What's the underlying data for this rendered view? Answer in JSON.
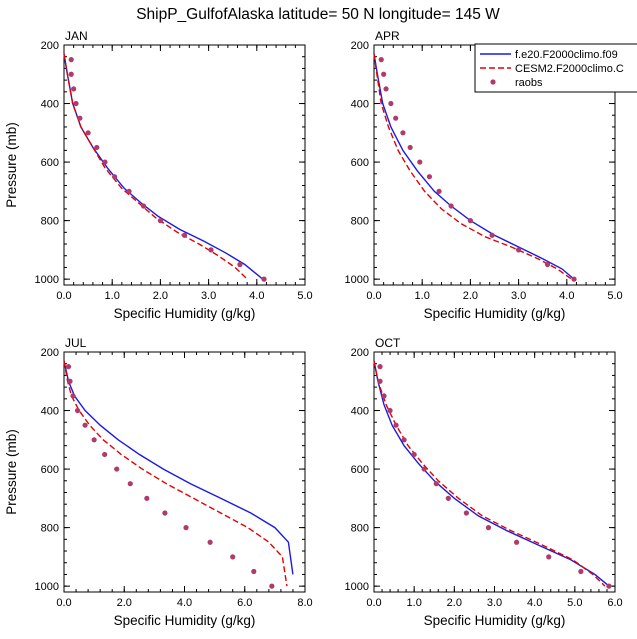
{
  "figure": {
    "title": "ShipP_GulfofAlaska  latitude= 50 N longitude= 145 W"
  },
  "colors": {
    "model1": "#1a1ae6",
    "model2": "#e60000",
    "obs": "#b03a6a"
  },
  "legend": {
    "placement": "top-right of APR panel",
    "entries": [
      {
        "label": "f.e20.F2000climo.f09",
        "style": "solid",
        "color": "#1a1ae6"
      },
      {
        "label": "CESM2.F2000climo.C",
        "style": "dashed",
        "color": "#e60000"
      },
      {
        "label": "raobs",
        "style": "marker",
        "color": "#b03a6a"
      }
    ]
  },
  "chart_data": [
    {
      "type": "line",
      "panel": "JAN",
      "xlabel": "Specific Humidity (g/kg)",
      "ylabel": "Pressure (mb)",
      "xlim": [
        0,
        5
      ],
      "ylim": [
        1020,
        200
      ],
      "xticks": [
        "0.0",
        "1.0",
        "2.0",
        "3.0",
        "4.0",
        "5.0"
      ],
      "yticks": [
        "200",
        "400",
        "600",
        "800",
        "1000"
      ],
      "series": [
        {
          "name": "f.e20.F2000climo.f09",
          "style": "solid",
          "x": [
            0.0,
            0.07,
            0.18,
            0.35,
            0.6,
            0.9,
            1.25,
            1.6,
            1.95,
            2.4,
            2.9,
            3.35,
            3.75,
            4.05,
            4.12
          ],
          "y": [
            230,
            300,
            400,
            480,
            550,
            620,
            690,
            740,
            785,
            830,
            870,
            910,
            950,
            990,
            1000
          ]
        },
        {
          "name": "CESM2.F2000climo.C",
          "style": "dashed",
          "x": [
            0.0,
            0.07,
            0.18,
            0.35,
            0.6,
            0.85,
            1.2,
            1.55,
            1.9,
            2.35,
            2.8,
            3.2,
            3.55,
            3.8
          ],
          "y": [
            230,
            300,
            400,
            480,
            550,
            620,
            690,
            740,
            790,
            840,
            880,
            920,
            960,
            1000
          ]
        },
        {
          "name": "raobs",
          "style": "marker",
          "x": [
            0.15,
            0.15,
            0.2,
            0.25,
            0.33,
            0.5,
            0.68,
            0.85,
            1.05,
            1.35,
            1.65,
            2.0,
            2.5,
            3.05,
            3.65,
            4.15
          ],
          "y": [
            250,
            300,
            350,
            400,
            450,
            500,
            550,
            600,
            650,
            700,
            750,
            800,
            850,
            900,
            950,
            1000
          ]
        }
      ]
    },
    {
      "type": "line",
      "panel": "APR",
      "xlabel": "Specific Humidity (g/kg)",
      "ylabel": "",
      "xlim": [
        0,
        5
      ],
      "ylim": [
        1020,
        200
      ],
      "xticks": [
        "0.0",
        "1.0",
        "2.0",
        "3.0",
        "4.0",
        "5.0"
      ],
      "yticks": [
        "200",
        "400",
        "600",
        "800",
        "1000"
      ],
      "series": [
        {
          "name": "f.e20.F2000climo.f09",
          "style": "solid",
          "x": [
            0.0,
            0.07,
            0.18,
            0.35,
            0.6,
            0.9,
            1.25,
            1.6,
            2.0,
            2.5,
            3.0,
            3.5,
            3.9,
            4.15
          ],
          "y": [
            230,
            300,
            400,
            480,
            560,
            630,
            700,
            750,
            800,
            850,
            890,
            930,
            965,
            1000
          ]
        },
        {
          "name": "CESM2.F2000climo.C",
          "style": "dashed",
          "x": [
            0.0,
            0.06,
            0.15,
            0.3,
            0.5,
            0.75,
            1.05,
            1.4,
            1.8,
            2.3,
            2.85,
            3.4,
            3.8,
            4.1
          ],
          "y": [
            230,
            300,
            400,
            480,
            560,
            630,
            700,
            760,
            810,
            855,
            890,
            930,
            965,
            1000
          ]
        },
        {
          "name": "raobs",
          "style": "marker",
          "x": [
            0.15,
            0.2,
            0.25,
            0.35,
            0.45,
            0.6,
            0.75,
            0.95,
            1.15,
            1.35,
            1.6,
            2.0,
            2.45,
            3.0,
            3.6,
            4.15
          ],
          "y": [
            250,
            300,
            350,
            400,
            450,
            500,
            550,
            600,
            650,
            700,
            750,
            800,
            850,
            900,
            950,
            1000
          ]
        }
      ]
    },
    {
      "type": "line",
      "panel": "JUL",
      "xlabel": "Specific Humidity (g/kg)",
      "ylabel": "Pressure (mb)",
      "xlim": [
        0,
        8
      ],
      "ylim": [
        1020,
        200
      ],
      "xticks": [
        "0.0",
        "2.0",
        "4.0",
        "6.0",
        "8.0"
      ],
      "yticks": [
        "200",
        "400",
        "600",
        "800",
        "1000"
      ],
      "series": [
        {
          "name": "f.e20.F2000climo.f09",
          "style": "solid",
          "x": [
            0.0,
            0.15,
            0.35,
            0.7,
            1.2,
            1.8,
            2.5,
            3.3,
            4.2,
            5.2,
            6.2,
            7.0,
            7.45,
            7.6
          ],
          "y": [
            230,
            300,
            350,
            400,
            450,
            500,
            550,
            600,
            650,
            700,
            750,
            800,
            850,
            960
          ]
        },
        {
          "name": "CESM2.F2000climo.C",
          "style": "dashed",
          "x": [
            0.0,
            0.12,
            0.25,
            0.5,
            0.85,
            1.3,
            1.9,
            2.6,
            3.4,
            4.3,
            5.2,
            6.1,
            6.8,
            7.25,
            7.4
          ],
          "y": [
            230,
            300,
            350,
            400,
            450,
            500,
            550,
            600,
            650,
            700,
            750,
            800,
            850,
            900,
            1000
          ]
        },
        {
          "name": "raobs",
          "style": "marker",
          "x": [
            0.15,
            0.2,
            0.3,
            0.45,
            0.7,
            1.0,
            1.35,
            1.75,
            2.2,
            2.75,
            3.35,
            4.05,
            4.85,
            5.6,
            6.3,
            6.9
          ],
          "y": [
            250,
            300,
            350,
            400,
            450,
            500,
            550,
            600,
            650,
            700,
            750,
            800,
            850,
            900,
            950,
            1000
          ]
        }
      ]
    },
    {
      "type": "line",
      "panel": "OCT",
      "xlabel": "Specific Humidity (g/kg)",
      "ylabel": "",
      "xlim": [
        0,
        6
      ],
      "ylim": [
        1020,
        200
      ],
      "xticks": [
        "0.0",
        "1.0",
        "2.0",
        "3.0",
        "4.0",
        "5.0",
        "6.0"
      ],
      "yticks": [
        "200",
        "400",
        "600",
        "800",
        "1000"
      ],
      "series": [
        {
          "name": "f.e20.F2000climo.f09",
          "style": "solid",
          "x": [
            0.0,
            0.1,
            0.25,
            0.45,
            0.75,
            1.1,
            1.5,
            2.0,
            2.6,
            3.3,
            4.1,
            4.9,
            5.5,
            5.85
          ],
          "y": [
            230,
            300,
            380,
            450,
            520,
            580,
            640,
            700,
            760,
            810,
            860,
            910,
            960,
            1000
          ]
        },
        {
          "name": "CESM2.F2000climo.C",
          "style": "dashed",
          "x": [
            0.0,
            0.1,
            0.3,
            0.55,
            0.85,
            1.2,
            1.6,
            2.1,
            2.7,
            3.4,
            4.2,
            4.95,
            5.45,
            5.75
          ],
          "y": [
            230,
            300,
            380,
            450,
            520,
            580,
            640,
            700,
            760,
            810,
            860,
            910,
            960,
            1000
          ]
        },
        {
          "name": "raobs",
          "style": "marker",
          "x": [
            0.15,
            0.15,
            0.25,
            0.4,
            0.55,
            0.75,
            1.0,
            1.25,
            1.55,
            1.85,
            2.3,
            2.85,
            3.55,
            4.35,
            5.15,
            5.85
          ],
          "y": [
            250,
            300,
            350,
            400,
            450,
            500,
            550,
            600,
            650,
            700,
            750,
            800,
            850,
            900,
            950,
            1000
          ]
        }
      ]
    }
  ]
}
